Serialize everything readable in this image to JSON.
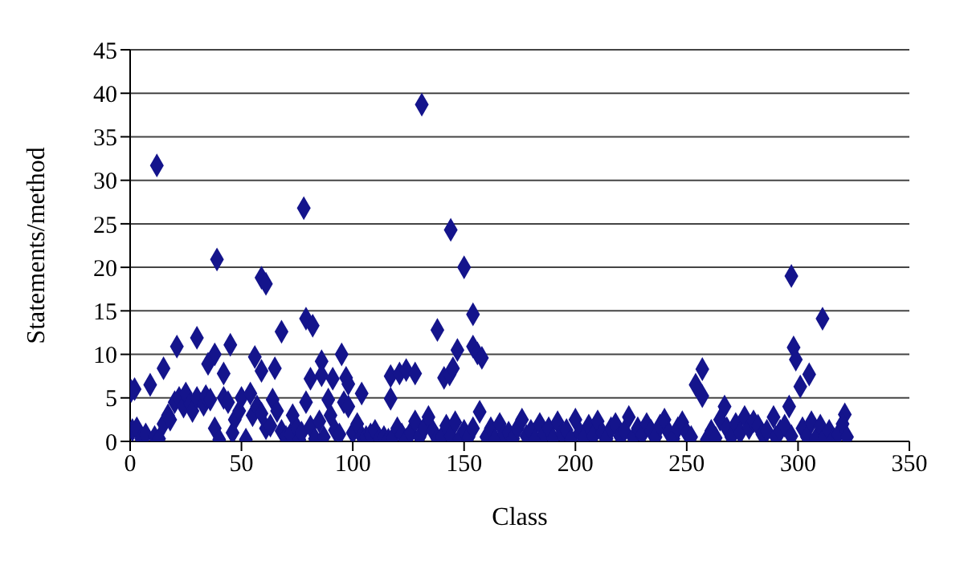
{
  "chart_data": {
    "type": "scatter",
    "xlabel": "Class",
    "ylabel": "Statements/method",
    "xlim": [
      0,
      350
    ],
    "xticks": [
      0,
      50,
      100,
      150,
      200,
      250,
      300,
      350
    ],
    "ylim": [
      0,
      45
    ],
    "yticks": [
      0,
      5,
      10,
      15,
      20,
      25,
      30,
      35,
      40,
      45
    ],
    "grid": "y",
    "marker": "diamond",
    "series": [
      {
        "color": "#14148c",
        "x": [
          2,
          1,
          12,
          39,
          59,
          61,
          78,
          79,
          82,
          68,
          30,
          21,
          45,
          15,
          38,
          35,
          42,
          56,
          59,
          65,
          86,
          95,
          81,
          86,
          91,
          97,
          98,
          117,
          121,
          124,
          117,
          104,
          0.5,
          9,
          131,
          144,
          150,
          154,
          138,
          147,
          154,
          156,
          158,
          141,
          143.5,
          145,
          128,
          157,
          297,
          311,
          298,
          299,
          305,
          301,
          257,
          254,
          257,
          296,
          267,
          321,
          289,
          3,
          5,
          7,
          11,
          13,
          15,
          17,
          18,
          20,
          22,
          24,
          25,
          27,
          28,
          30,
          33,
          34,
          36,
          38,
          40,
          42,
          44,
          46,
          47,
          49,
          50,
          52,
          54,
          55,
          57,
          59,
          61,
          63,
          64,
          66,
          68,
          70,
          72,
          73,
          75,
          76,
          77,
          79,
          81,
          83,
          85,
          87,
          89,
          90,
          92,
          94,
          96,
          98,
          100,
          102,
          104,
          106,
          108,
          110,
          112,
          114,
          116,
          118,
          120,
          122,
          124,
          126,
          128,
          130,
          132,
          134,
          136,
          138,
          140,
          142,
          144,
          146,
          148,
          150,
          152,
          154,
          160,
          162,
          164,
          166,
          168,
          170,
          172,
          174,
          176,
          178,
          180,
          182,
          184,
          186,
          188,
          190,
          192,
          194,
          196,
          198,
          200,
          202,
          204,
          206,
          208,
          210,
          212,
          214,
          216,
          218,
          220,
          222,
          224,
          226,
          228,
          230,
          232,
          234,
          236,
          238,
          240,
          242,
          244,
          246,
          248,
          250,
          252,
          259,
          261,
          263,
          265,
          268,
          270,
          272,
          274,
          276,
          278,
          280,
          282,
          284,
          286,
          290,
          292,
          294,
          297,
          302,
          304,
          306,
          308,
          310,
          312,
          314,
          316,
          318,
          320,
          322
        ],
        "values": [
          6,
          1.3,
          31.7,
          20.9,
          18.8,
          18.1,
          26.8,
          14.1,
          13.3,
          12.6,
          11.9,
          10.9,
          11.1,
          8.4,
          10,
          8.9,
          7.8,
          9.7,
          8.1,
          8.4,
          9.2,
          10,
          7.2,
          7.6,
          7.2,
          7.3,
          6.6,
          7.5,
          7.8,
          8.2,
          4.9,
          5.5,
          5.8,
          6.5,
          38.7,
          24.3,
          20,
          14.6,
          12.8,
          10.5,
          10.9,
          10.1,
          9.6,
          7.3,
          7.7,
          8.4,
          7.8,
          3.4,
          19,
          14.1,
          10.8,
          9.4,
          7.7,
          6.3,
          8.3,
          6.5,
          5.2,
          4,
          4,
          3.1,
          2.8,
          1.5,
          0.3,
          0.8,
          0.5,
          0.3,
          2,
          3,
          2.5,
          4.5,
          5,
          4,
          5.5,
          4.3,
          3.5,
          5,
          4.2,
          5.2,
          4.8,
          1.5,
          0.2,
          5,
          4.5,
          1,
          2.5,
          3.5,
          5,
          0.2,
          5.5,
          3,
          4,
          3.2,
          1.5,
          1.8,
          4.8,
          3.5,
          1.2,
          0.5,
          0.8,
          3,
          1.5,
          0.2,
          1,
          4.5,
          1.7,
          0.3,
          2.3,
          0.5,
          4.8,
          3,
          1.3,
          0.8,
          4.5,
          4,
          1,
          2,
          0.6,
          0.5,
          0.8,
          1.2,
          0.3,
          0.5,
          0.2,
          0.4,
          1.5,
          0.8,
          0.2,
          1,
          2.3,
          0.5,
          1.5,
          2.8,
          1.2,
          0.3,
          0.5,
          1.8,
          0.6,
          2.2,
          0.3,
          1.2,
          0.5,
          1.5,
          0.5,
          1.5,
          0.2,
          2,
          0.8,
          1,
          0.3,
          1.5,
          2.5,
          0.6,
          1.2,
          0.2,
          2,
          0.8,
          1.5,
          0.3,
          2.2,
          0.9,
          1.3,
          0.2,
          2.5,
          1,
          0.5,
          1.8,
          0.6,
          2.3,
          1,
          0.3,
          1.5,
          2,
          0.6,
          1.2,
          2.8,
          0.4,
          1.5,
          0.8,
          2,
          1.2,
          0.5,
          1.8,
          2.5,
          1,
          0.3,
          1.5,
          2.2,
          1,
          0.5,
          0.2,
          1.2,
          0.4,
          2.5,
          1.5,
          0.5,
          2,
          1,
          2.8,
          1.5,
          2.3,
          1.8,
          0.8,
          1.2,
          0.5,
          1.2,
          1.8,
          0.6,
          1.5,
          0.5,
          2.2,
          0.3,
          1.8,
          0.5,
          1.2,
          0.3,
          0.8,
          2,
          0.5
        ]
      }
    ]
  }
}
